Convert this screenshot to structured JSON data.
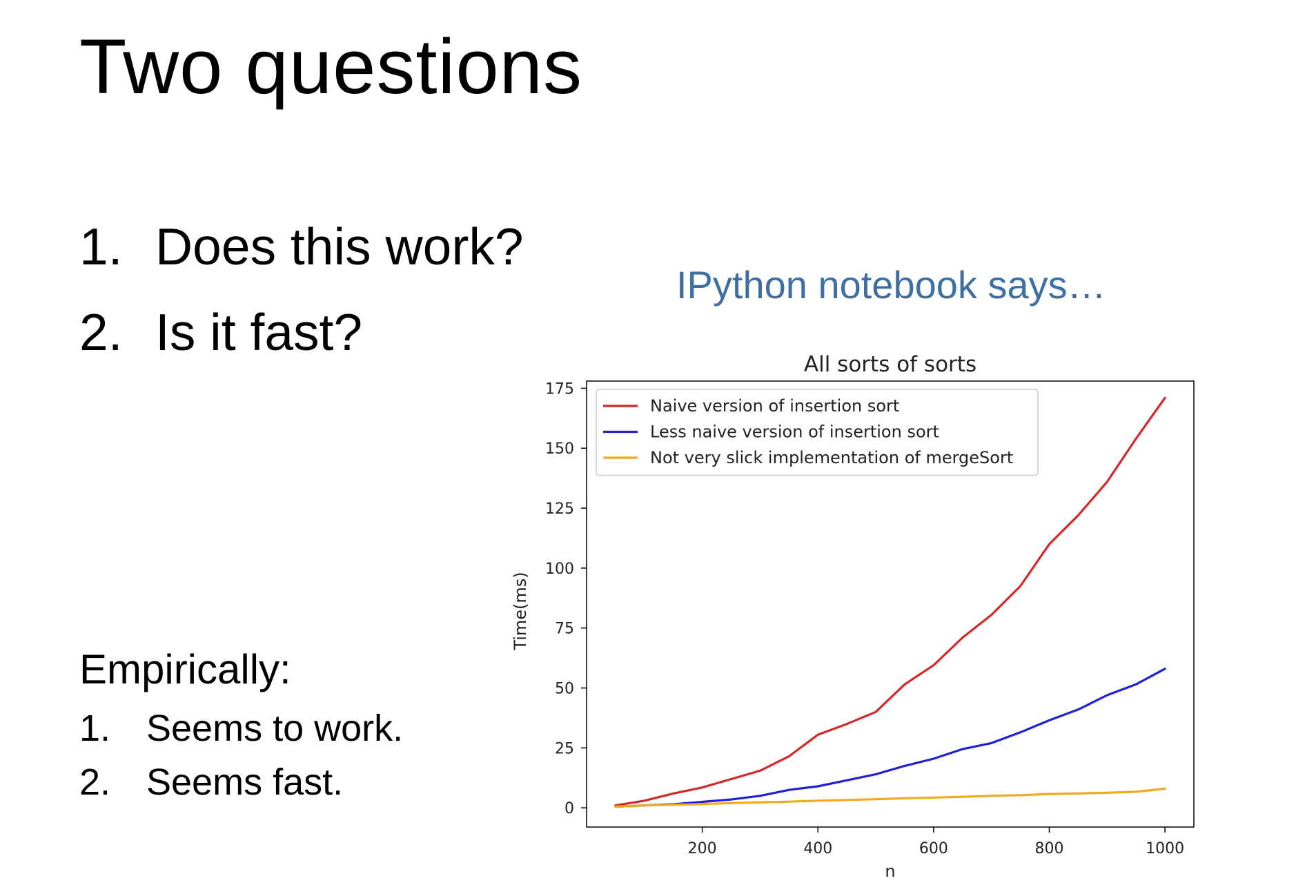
{
  "slide": {
    "title": "Two questions",
    "questions": [
      {
        "num": "1.",
        "text": "Does this work?"
      },
      {
        "num": "2.",
        "text": "Is it fast?"
      }
    ],
    "subtitle": "IPython notebook says…",
    "empirical": {
      "heading": "Empirically:",
      "items": [
        {
          "num": "1.",
          "text": "Seems to work."
        },
        {
          "num": "2.",
          "text": "Seems fast."
        }
      ]
    }
  },
  "colors": {
    "subtitle": "#3e6fa3",
    "naive": "#d62728",
    "less_naive": "#1f1fd6",
    "merge": "#f2a91b"
  },
  "chart_data": {
    "type": "line",
    "title": "All sorts of sorts",
    "xlabel": "n",
    "ylabel": "Time(ms)",
    "xlim": [
      0,
      1050
    ],
    "ylim": [
      -8,
      178
    ],
    "xticks": [
      200,
      400,
      600,
      800,
      1000
    ],
    "yticks": [
      0,
      25,
      50,
      75,
      100,
      125,
      150,
      175
    ],
    "legend_position": "top-left",
    "x": [
      50,
      100,
      150,
      200,
      250,
      300,
      350,
      400,
      450,
      500,
      550,
      600,
      650,
      700,
      750,
      800,
      850,
      900,
      950,
      1000
    ],
    "series": [
      {
        "name": "Naive version of insertion sort",
        "color": "#d62728",
        "values": [
          1,
          3,
          6,
          8.5,
          12,
          15.5,
          21.5,
          30.5,
          35,
          40,
          51.5,
          59.5,
          71,
          80.5,
          92.5,
          110,
          122,
          136,
          154,
          171
        ]
      },
      {
        "name": "Less naive version of insertion sort",
        "color": "#1f1fd6",
        "values": [
          0.5,
          1,
          1.5,
          2.5,
          3.5,
          5,
          7.5,
          9,
          11.5,
          14,
          17.5,
          20.5,
          24.5,
          27,
          31.5,
          36.5,
          41,
          47,
          51.5,
          58
        ]
      },
      {
        "name": "Not very slick implementation of mergeSort",
        "color": "#f2a91b",
        "values": [
          0.5,
          1,
          1.3,
          1.6,
          2,
          2.3,
          2.6,
          3,
          3.3,
          3.6,
          4,
          4.3,
          4.6,
          5,
          5.3,
          5.8,
          6,
          6.3,
          6.7,
          8
        ]
      }
    ]
  }
}
